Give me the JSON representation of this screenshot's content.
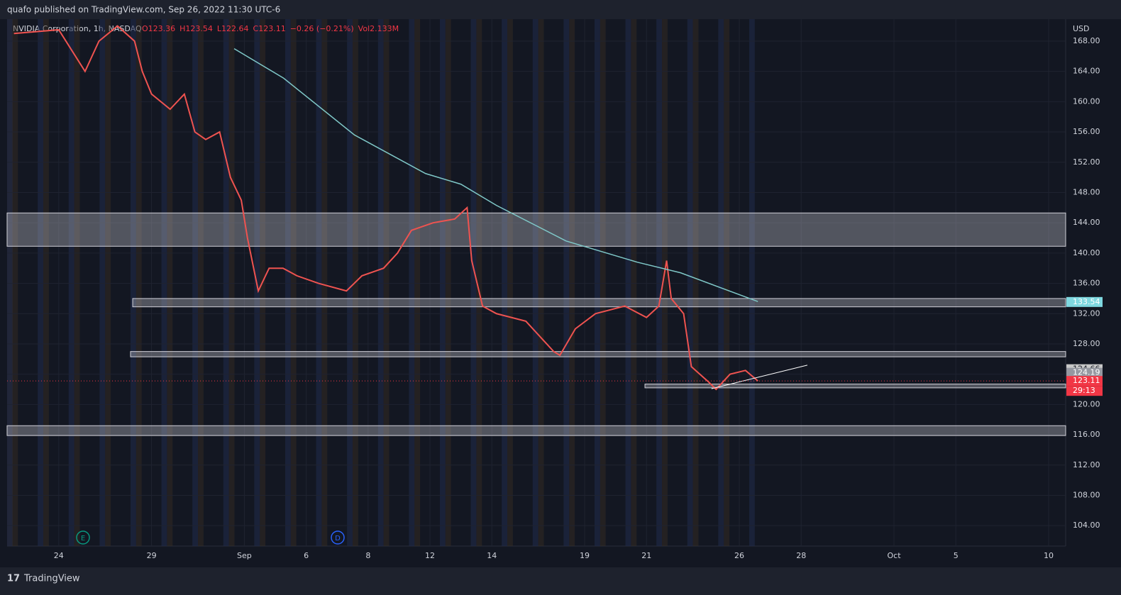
{
  "header": "quafo published on TradingView.com, Sep 26, 2022 11:30 UTC-6",
  "footer": "TradingView",
  "chart_data": {
    "type": "line",
    "symbol": "NVIDIA Corporation, 1h, NASDAQ",
    "ohlc": [
      "O123.36",
      "H123.54",
      "L122.64",
      "C123.11",
      "−0.26 (−0.21%)",
      "Vol2.133M"
    ],
    "currency": "USD",
    "events": [
      "E",
      "D"
    ],
    "xlim": [
      -1.67,
      32.55
    ],
    "ylim": [
      101.3,
      170.9
    ],
    "xticks": [
      {
        "value": 0,
        "label": "24"
      },
      {
        "value": 3,
        "label": "29"
      },
      {
        "value": 6,
        "label": "Sep"
      },
      {
        "value": 8,
        "label": "6"
      },
      {
        "value": 10,
        "label": "8"
      },
      {
        "value": 12,
        "label": "12"
      },
      {
        "value": 14,
        "label": "14"
      },
      {
        "value": 17,
        "label": "19"
      },
      {
        "value": 19,
        "label": "21"
      },
      {
        "value": 22,
        "label": "26"
      },
      {
        "value": 24,
        "label": "28"
      },
      {
        "value": 27,
        "label": "Oct"
      },
      {
        "value": 29,
        "label": "5"
      },
      {
        "value": 32,
        "label": "10"
      }
    ],
    "yticks": [
      {
        "value": 104,
        "label": "104.00"
      },
      {
        "value": 108,
        "label": "108.00"
      },
      {
        "value": 112,
        "label": "112.00"
      },
      {
        "value": 116,
        "label": "116.00"
      },
      {
        "value": 120,
        "label": "120.00"
      },
      {
        "value": 124,
        "label": "124.00"
      },
      {
        "value": 128,
        "label": "128.00"
      },
      {
        "value": 132,
        "label": "132.00"
      },
      {
        "value": 136,
        "label": "136.00"
      },
      {
        "value": 140,
        "label": "140.00"
      },
      {
        "value": 144,
        "label": "144.00"
      },
      {
        "value": 148,
        "label": "148.00"
      },
      {
        "value": 152,
        "label": "152.00"
      },
      {
        "value": 156,
        "label": "156.00"
      },
      {
        "value": 160,
        "label": "160.00"
      },
      {
        "value": 164,
        "label": "164.00"
      },
      {
        "value": 168,
        "label": "168.00"
      }
    ],
    "grid": true,
    "series": [
      {
        "color": "#ef5350",
        "x": [
          -1.45,
          0,
          0.85,
          1.3,
          1.9,
          2.45,
          2.7,
          3,
          3.6,
          4.06,
          4.4,
          4.75,
          5.2,
          5.55,
          5.9,
          6.1,
          6.45,
          6.8,
          7.25,
          7.7,
          8.4,
          9.3,
          9.8,
          10.5,
          10.95,
          11.4,
          12.1,
          12.8,
          13.2,
          13.35,
          13.7,
          14.15,
          15.1,
          16,
          16.2,
          16.7,
          17.35,
          18.3,
          19,
          19.4,
          19.65,
          19.8,
          20.2,
          20.45,
          21,
          21.25,
          21.7,
          22.2,
          22.6
        ],
        "values": [
          169,
          169.5,
          164,
          168,
          170,
          168,
          164,
          161,
          159,
          161,
          156,
          155,
          156,
          150,
          147,
          142,
          135,
          138,
          138,
          137,
          136,
          135,
          137,
          138,
          140,
          143,
          144,
          144.5,
          146,
          139,
          133,
          132,
          131,
          127,
          126.5,
          130,
          132,
          133,
          131.5,
          133,
          139,
          134,
          132,
          125,
          123,
          122,
          124,
          124.5,
          123.11
        ]
      },
      {
        "color": "#7fc8c8",
        "x": [
          5.67,
          7.27,
          9.56,
          11.86,
          13,
          14.15,
          16.4,
          18.7,
          20.1,
          22.6
        ],
        "values": [
          167,
          163.1,
          155.6,
          150.5,
          149.1,
          146.3,
          141.6,
          138.8,
          137.4,
          133.6
        ]
      }
    ],
    "zones": [
      {
        "from": -1.67,
        "low": 140.9,
        "high": 145.3
      },
      {
        "from": 2.39,
        "low": 132.9,
        "high": 134
      },
      {
        "from": 2.32,
        "low": 126.3,
        "high": 127
      },
      {
        "from": 18.95,
        "low": 122.2,
        "high": 122.7
      },
      {
        "from": -1.67,
        "low": 115.9,
        "high": 117.2
      }
    ],
    "trendline": {
      "x": [
        21.1,
        24.2
      ],
      "values": [
        122.08,
        125.2
      ]
    },
    "price_labels": [
      {
        "value": 133.54,
        "label": "133.54",
        "color": "#7fd8e0"
      },
      {
        "value": 124.66,
        "label": "124.66",
        "color": "#c8c8c8"
      },
      {
        "value": 124.19,
        "label": "124.19",
        "color": "#9598a1"
      },
      {
        "value": 123.11,
        "label": "123.11",
        "color": "#f23645"
      }
    ],
    "countdown": "29:13"
  }
}
